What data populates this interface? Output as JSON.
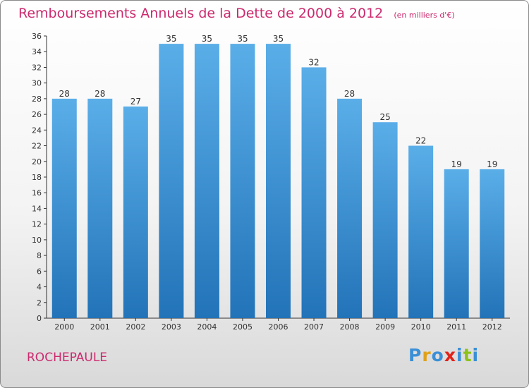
{
  "title": "Remboursements Annuels de la Dette de 2000 à 2012",
  "unit": "(en milliers d'€)",
  "place": "ROCHEPAULE",
  "brand": {
    "letters": [
      "P",
      "r",
      "o",
      "x",
      "i",
      "t",
      "i"
    ],
    "colors": [
      "#3a8fd6",
      "#e0a21a",
      "#3a8fd6",
      "#e0231a",
      "#3a8fd6",
      "#8cc21a",
      "#3a8fd6"
    ]
  },
  "colors": {
    "title": "#cc2a6e",
    "bar_top": "#5aaee8",
    "bar_bottom": "#2273b8"
  },
  "chart_data": {
    "type": "bar",
    "categories": [
      "2000",
      "2001",
      "2002",
      "2003",
      "2004",
      "2005",
      "2006",
      "2007",
      "2008",
      "2009",
      "2010",
      "2011",
      "2012"
    ],
    "values": [
      28,
      28,
      27,
      35,
      35,
      35,
      35,
      32,
      28,
      25,
      22,
      19,
      19
    ],
    "ylim": [
      0,
      36
    ],
    "yticks": [
      0,
      2,
      4,
      6,
      8,
      10,
      12,
      14,
      16,
      18,
      20,
      22,
      24,
      26,
      28,
      30,
      32,
      34,
      36
    ],
    "grid": false,
    "data_labels": true
  }
}
